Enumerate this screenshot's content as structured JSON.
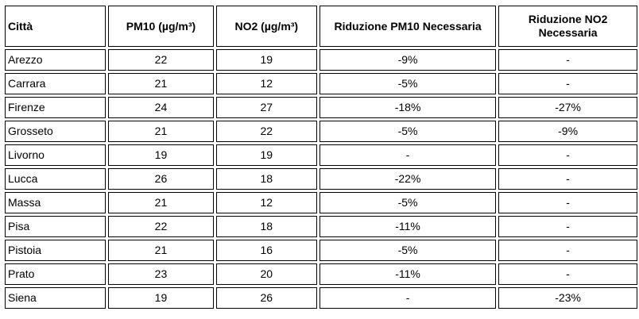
{
  "table": {
    "headers": [
      "Città",
      "PM10 (µg/m³)",
      "NO2 (µg/m³)",
      "Riduzione PM10 Necessaria",
      "Riduzione NO2 Necessaria"
    ],
    "rows": [
      [
        "Arezzo",
        "22",
        "19",
        "-9%",
        "-"
      ],
      [
        "Carrara",
        "21",
        "12",
        "-5%",
        "-"
      ],
      [
        "Firenze",
        "24",
        "27",
        "-18%",
        "-27%"
      ],
      [
        "Grosseto",
        "21",
        "22",
        "-5%",
        "-9%"
      ],
      [
        "Livorno",
        "19",
        "19",
        "-",
        "-"
      ],
      [
        "Lucca",
        "26",
        "18",
        "-22%",
        "-"
      ],
      [
        "Massa",
        "21",
        "12",
        "-5%",
        "-"
      ],
      [
        "Pisa",
        "22",
        "18",
        "-11%",
        "-"
      ],
      [
        "Pistoia",
        "21",
        "16",
        "-5%",
        "-"
      ],
      [
        "Prato",
        "23",
        "20",
        "-11%",
        "-"
      ],
      [
        "Siena",
        "19",
        "26",
        "-",
        "-23%"
      ]
    ]
  }
}
